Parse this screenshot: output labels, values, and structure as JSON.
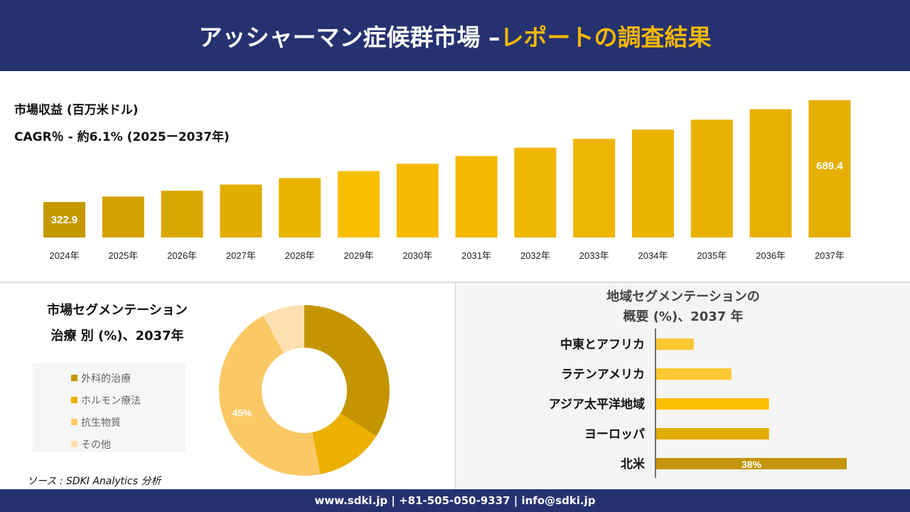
{
  "header": {
    "title_main": "アッシャーマン症候群市場 –",
    "title_accent": "レポートの調査結果"
  },
  "revenue": {
    "title": "市場収益 (百万米ドル)",
    "cagr": "CAGR％ - 約6.1% (2025ー2037年)"
  },
  "segment": {
    "title_line1": "市場セグメンテーション",
    "title_line2": "治療 別 (%)、2037年"
  },
  "region": {
    "title_line1": "地域セグメンテーションの",
    "title_line2": "概要 (%)、2037 年"
  },
  "source": "ソース : SDKI Analytics 分析",
  "footer": "www.sdki.jp | +81-505-050-9337 | info@sdki.jp",
  "chart_data": [
    {
      "type": "bar",
      "title": "市場収益 (百万米ドル)",
      "categories": [
        "2024年",
        "2025年",
        "2026年",
        "2027年",
        "2028年",
        "2029年",
        "2030年",
        "2031年",
        "2032年",
        "2033年",
        "2034年",
        "2035年",
        "2036年",
        "2037年"
      ],
      "values": [
        322.9,
        342.6,
        363.5,
        385.7,
        409.2,
        434.2,
        460.7,
        488.8,
        518.6,
        550.2,
        583.8,
        619.4,
        657.2,
        689.4
      ],
      "data_labels": {
        "0": "322.9",
        "13": "689.4"
      },
      "ylim": [
        195,
        700
      ],
      "colors": [
        "#c49a00",
        "#d4a200",
        "#d9a800",
        "#e0ad00",
        "#ebb400",
        "#f7bf00",
        "#f5bb00",
        "#f2b900",
        "#efb700",
        "#edb500",
        "#ebb300",
        "#eab200",
        "#e8b000",
        "#e6ae00"
      ]
    },
    {
      "type": "pie",
      "title": "市場セグメンテーション 治療 別 (%)、2037年",
      "labels": [
        "外科的治療",
        "ホルモン療法",
        "抗生物質",
        "その他"
      ],
      "values": [
        34,
        13,
        45,
        8
      ],
      "data_labels": {
        "2": "45%"
      },
      "colors": [
        "#c49500",
        "#ebb000",
        "#fac865",
        "#fde0b0"
      ]
    },
    {
      "type": "bar",
      "orientation": "horizontal",
      "title": "地域セグメンテーションの 概要 (%)、2037 年",
      "categories": [
        "中東とアフリカ",
        "ラテンアメリカ",
        "アジア太平洋地域",
        "ヨーロッパ",
        "北米"
      ],
      "values": [
        7.5,
        15,
        22.5,
        22.5,
        38
      ],
      "data_labels": {
        "4": "38%"
      },
      "colors": [
        "#fcc830",
        "#fcc830",
        "#fcbf00",
        "#e3ac00",
        "#c4950a"
      ]
    }
  ]
}
